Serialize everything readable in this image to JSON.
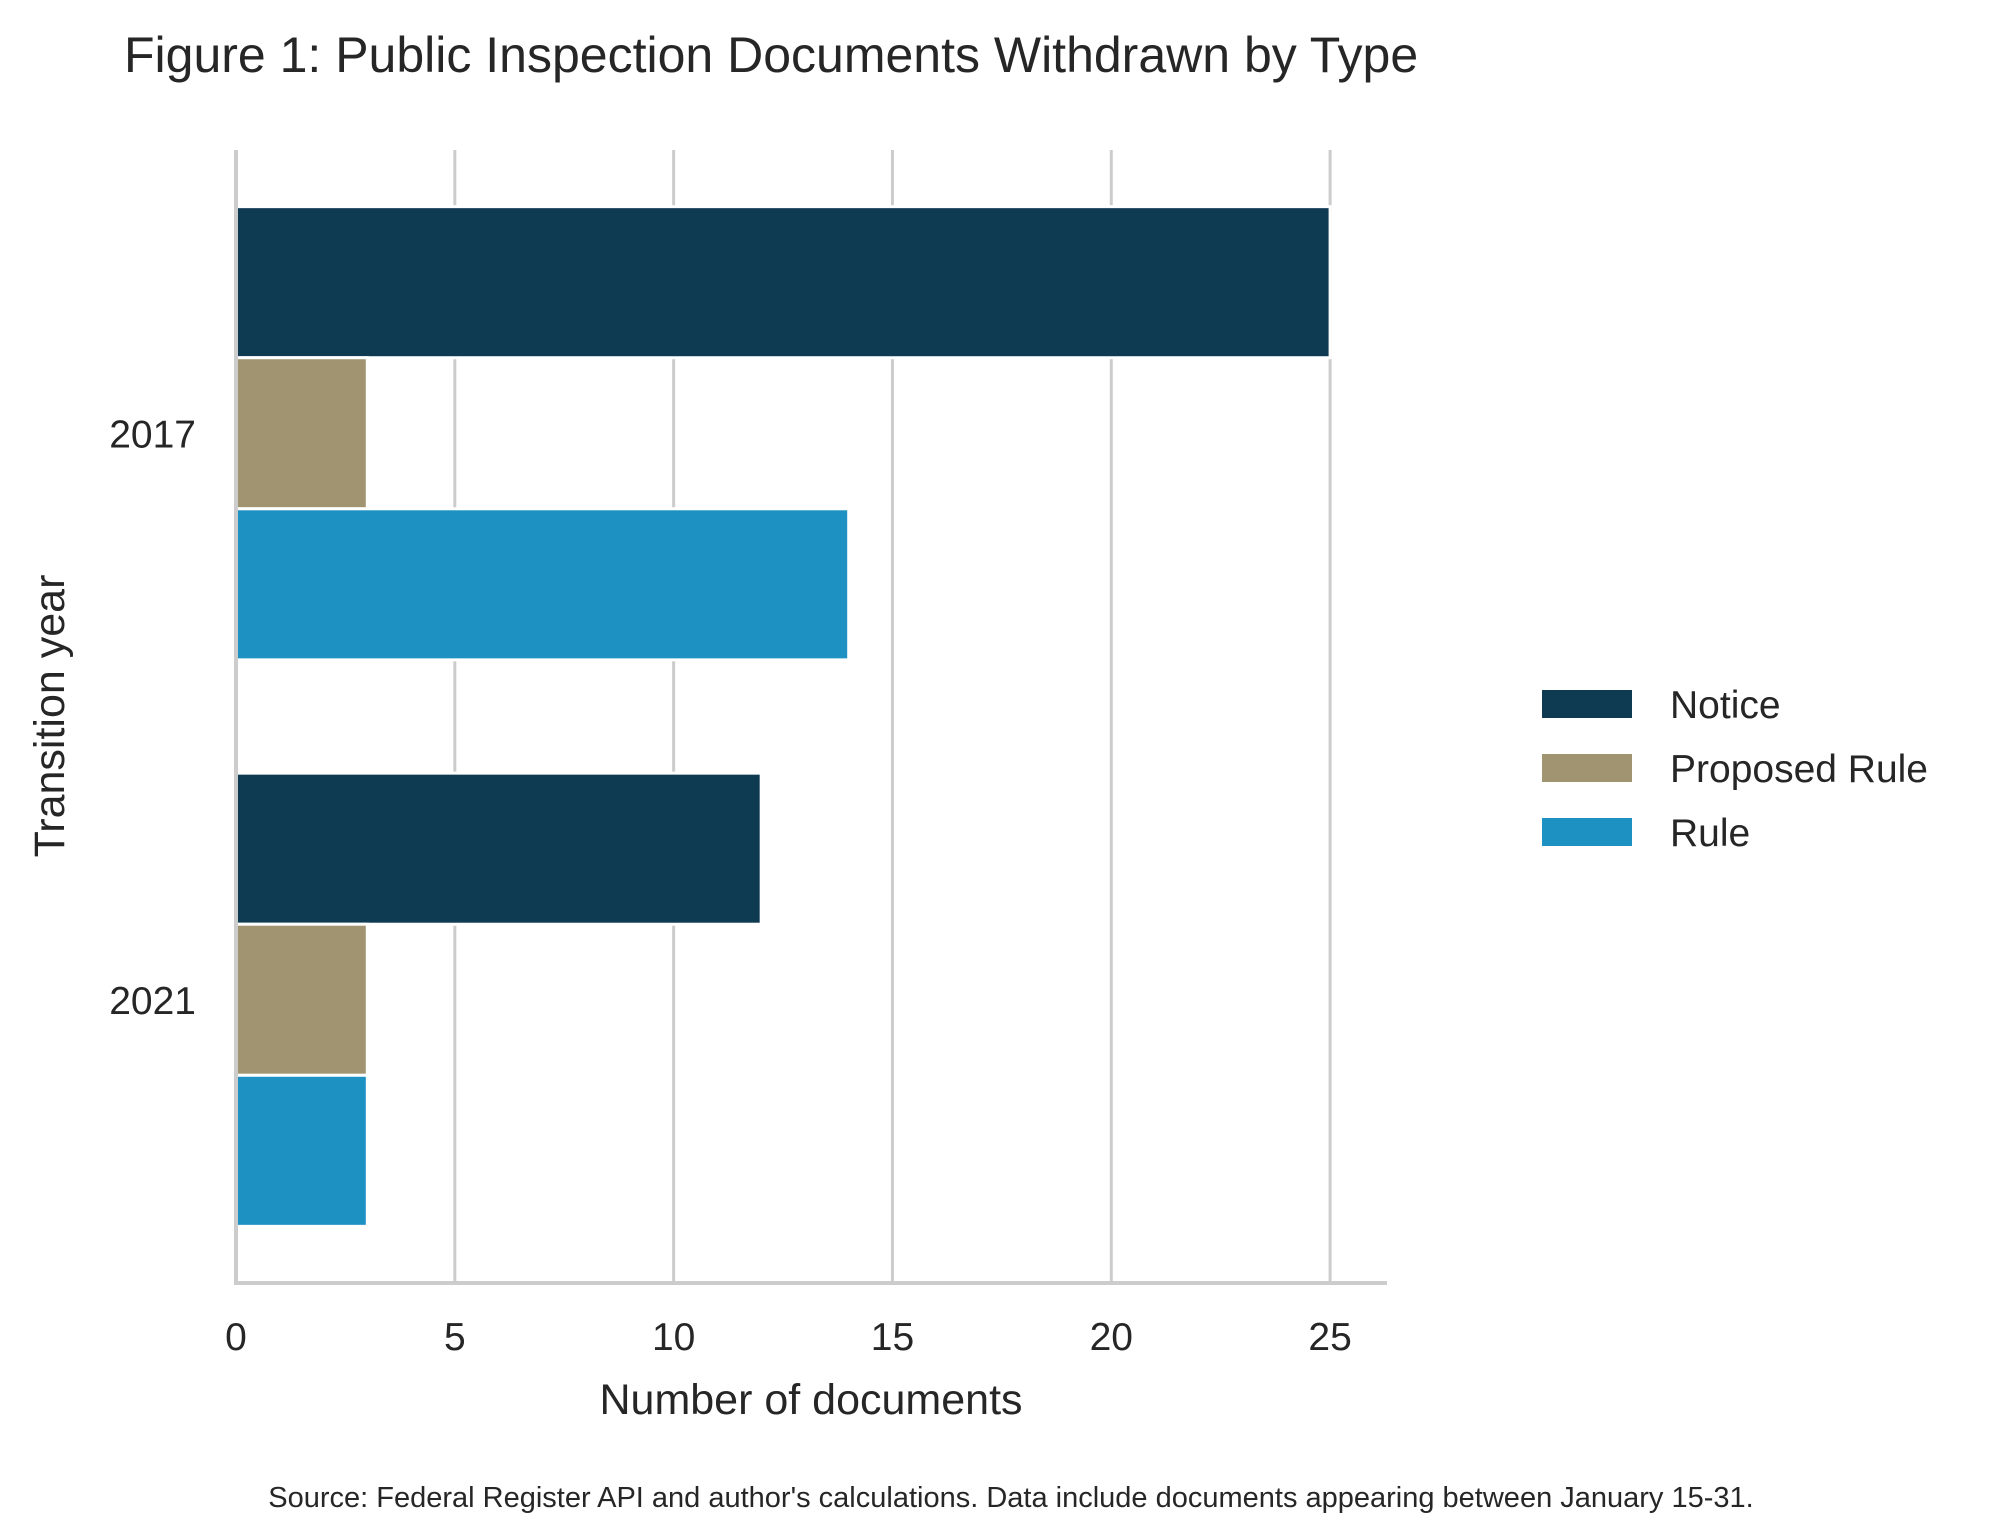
{
  "chart_data": {
    "type": "bar",
    "orientation": "horizontal",
    "title": "Figure 1: Public Inspection Documents Withdrawn by Type",
    "xlabel": "Number of documents",
    "ylabel": "Transition year",
    "categories": [
      "2017",
      "2021"
    ],
    "series": [
      {
        "name": "Notice",
        "color": "#0e3a52",
        "values": [
          25,
          12
        ]
      },
      {
        "name": "Proposed Rule",
        "color": "#a19470",
        "values": [
          3,
          3
        ]
      },
      {
        "name": "Rule",
        "color": "#1e91c3",
        "values": [
          14,
          3
        ]
      }
    ],
    "xlim": [
      0,
      26.3
    ],
    "xticks": [
      "0",
      "5",
      "10",
      "15",
      "20",
      "25"
    ],
    "grid": "vertical",
    "legend_position": "right",
    "source_note": "Source: Federal Register API and author's calculations. Data include documents appearing between January 15-31."
  }
}
